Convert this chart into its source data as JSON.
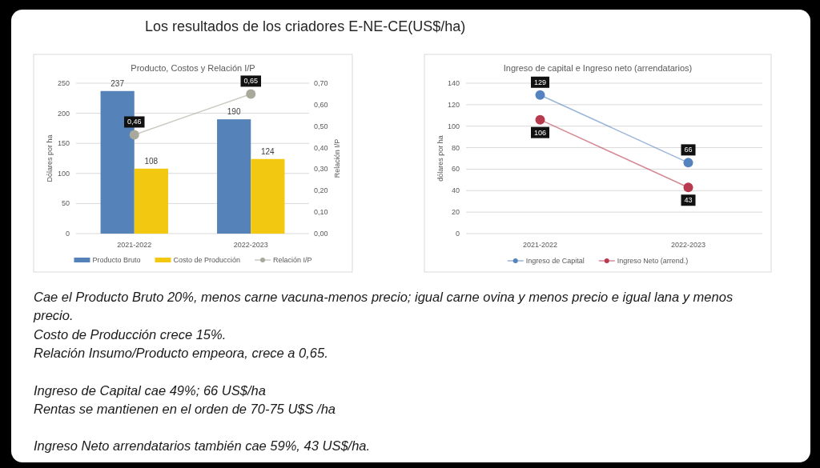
{
  "chart_data": [
    {
      "type": "bar",
      "title": "Producto, Costos y Relación I/P",
      "ylabel": "Dólares por ha",
      "y2label": "Relación I/P",
      "categories": [
        "2021-2022",
        "2022-2023"
      ],
      "series": [
        {
          "name": "Producto Bruto",
          "color": "#5682ba",
          "values": [
            237,
            190
          ],
          "value_labels": [
            "237",
            "190"
          ]
        },
        {
          "name": "Costo de Producción",
          "color": "#f2c811",
          "values": [
            108,
            124
          ],
          "value_labels": [
            "108",
            "124"
          ]
        },
        {
          "name": "Relación I/P",
          "type": "line",
          "axis": "y2",
          "color": "#a8a89c",
          "values": [
            0.46,
            0.65
          ],
          "value_labels": [
            "0,46",
            "0,65"
          ]
        }
      ],
      "ylim": [
        0,
        250
      ],
      "yticks": [
        0,
        50,
        100,
        150,
        200,
        250
      ],
      "y2lim": [
        0,
        0.7
      ],
      "y2ticks": [
        {
          "value": 0,
          "label": "0,00"
        },
        {
          "value": 0.1,
          "label": "0,10"
        },
        {
          "value": 0.2,
          "label": "0,20"
        },
        {
          "value": 0.3,
          "label": "0,30"
        },
        {
          "value": 0.4,
          "label": "0,40"
        },
        {
          "value": 0.5,
          "label": "0,50"
        },
        {
          "value": 0.6,
          "label": "0,60"
        },
        {
          "value": 0.7,
          "label": "0,70"
        }
      ],
      "grid": "y",
      "legend": "bottom",
      "marker": "circle"
    },
    {
      "type": "line",
      "title": "Ingreso de capital e Ingreso neto (arrendatarios)",
      "ylabel": "dólares por ha",
      "categories": [
        "2021-2022",
        "2022-2023"
      ],
      "series": [
        {
          "name": "Ingreso de Capital",
          "color": "#5583c0",
          "values": [
            129,
            66
          ]
        },
        {
          "name": "Ingreso Neto (arrend.)",
          "color": "#b83a4e",
          "values": [
            106,
            43
          ]
        }
      ],
      "ylim": [
        0,
        140
      ],
      "yticks": [
        0,
        20,
        40,
        60,
        80,
        100,
        120,
        140
      ],
      "grid": "y",
      "legend": "bottom",
      "marker": "circle",
      "data_labels": true
    },
    {
      "type": "other",
      "title": "Los resultados de los criadores E-NE-CE(US$/ha)",
      "annotations": [
        "Cae el Producto Bruto 20%, menos carne vacuna-menos precio; igual carne ovina y menos precio e igual lana y menos precio.\nCosto de Producción crece 15%.\nRelación Insumo/Producto empeora, crece a 0,65.",
        "Ingreso de Capital cae 49%; 66 US$/ha\nRentas se mantienen en el orden de 70-75 U$S /ha",
        "Ingreso Neto arrendatarios también cae 59%, 43 US$/ha."
      ]
    }
  ]
}
